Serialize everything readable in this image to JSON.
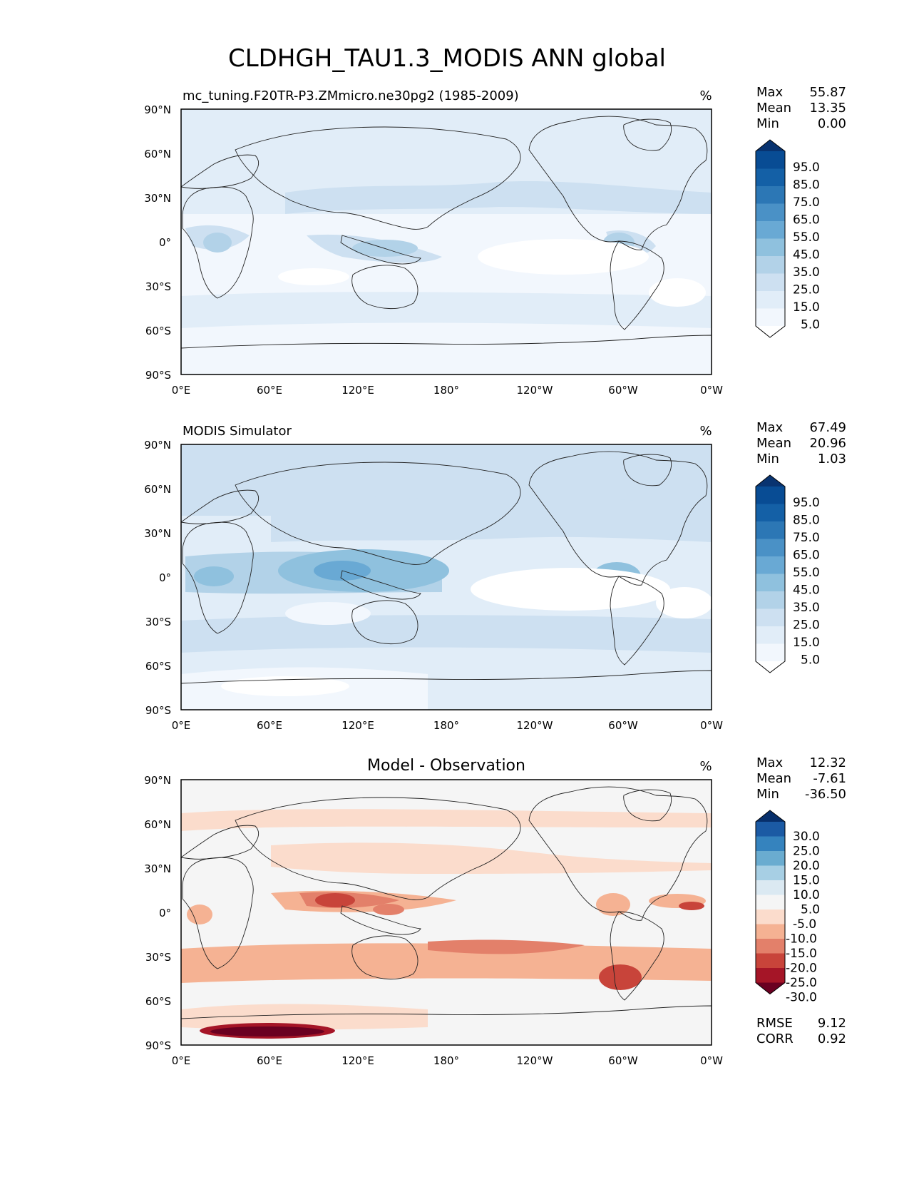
{
  "figure": {
    "title": "CLDHGH_TAU1.3_MODIS ANN global",
    "units": "%",
    "lat_ticks": [
      "90°N",
      "60°N",
      "30°N",
      "0°",
      "30°S",
      "60°S",
      "90°S"
    ],
    "lon_ticks": [
      "0°E",
      "60°E",
      "120°E",
      "180°",
      "120°W",
      "60°W",
      "0°W"
    ],
    "stats_labels": [
      "Max",
      "Mean",
      "Min"
    ],
    "rmse_label": "RMSE",
    "corr_label": "CORR"
  },
  "chart_data": [
    {
      "type": "heatmap",
      "panel": "test",
      "title": "mc_tuning.F20TR-P3.ZMmicro.ne30pg2 (1985-2009)",
      "units": "%",
      "colormap": "Blues",
      "levels": [
        "5.0",
        "15.0",
        "25.0",
        "35.0",
        "45.0",
        "55.0",
        "65.0",
        "75.0",
        "85.0",
        "95.0"
      ],
      "colors": [
        "#ffffff",
        "#f2f7fd",
        "#e1edf8",
        "#cde0f1",
        "#b2d2e8",
        "#8fc1de",
        "#69a9d4",
        "#4a91c6",
        "#2c77b5",
        "#1460a6",
        "#084c94",
        "#083370"
      ],
      "stats": {
        "Max": "55.87",
        "Mean": "13.35",
        "Min": "0.00"
      },
      "xlim": [
        0,
        360
      ],
      "ylim": [
        -90,
        90
      ]
    },
    {
      "type": "heatmap",
      "panel": "reference",
      "title": "MODIS Simulator",
      "units": "%",
      "colormap": "Blues",
      "levels": [
        "5.0",
        "15.0",
        "25.0",
        "35.0",
        "45.0",
        "55.0",
        "65.0",
        "75.0",
        "85.0",
        "95.0"
      ],
      "colors": [
        "#ffffff",
        "#f2f7fd",
        "#e1edf8",
        "#cde0f1",
        "#b2d2e8",
        "#8fc1de",
        "#69a9d4",
        "#4a91c6",
        "#2c77b5",
        "#1460a6",
        "#084c94",
        "#083370"
      ],
      "stats": {
        "Max": "67.49",
        "Mean": "20.96",
        "Min": "1.03"
      },
      "xlim": [
        0,
        360
      ],
      "ylim": [
        -90,
        90
      ]
    },
    {
      "type": "heatmap",
      "panel": "difference",
      "title": "Model - Observation",
      "units": "%",
      "colormap": "RdBu",
      "levels": [
        "30.0",
        "25.0",
        "20.0",
        "15.0",
        "10.0",
        "5.0",
        "-5.0",
        "-10.0",
        "-15.0",
        "-20.0",
        "-25.0",
        "-30.0"
      ],
      "colors": [
        "#072f6b",
        "#1b5aa4",
        "#3583be",
        "#6aacd0",
        "#a7cfe4",
        "#dbe9f2",
        "#f5f5f5",
        "#fbdccc",
        "#f5b293",
        "#e3806a",
        "#c8443a",
        "#a51527",
        "#6a0021"
      ],
      "stats": {
        "Max": "12.32",
        "Mean": "-7.61",
        "Min": "-36.50"
      },
      "metrics": {
        "RMSE": "9.12",
        "CORR": "0.92"
      },
      "xlim": [
        0,
        360
      ],
      "ylim": [
        -90,
        90
      ]
    }
  ]
}
